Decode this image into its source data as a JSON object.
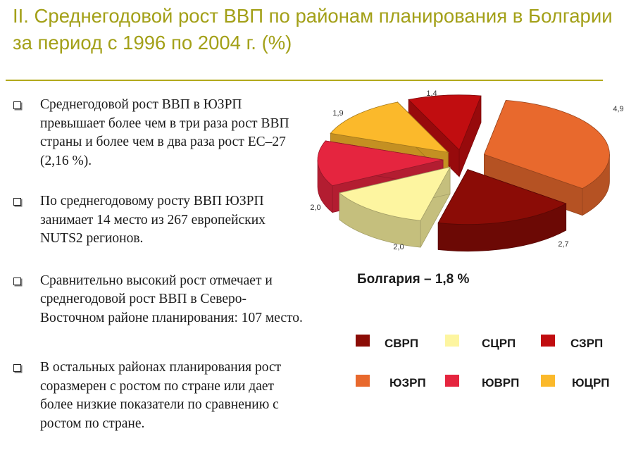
{
  "page": {
    "title": "II. Среднегодовой рост ВВП по районам планирования в Болгарии за период с 1996 по 2004 г. (%)"
  },
  "bullets": [
    "Среднегодовой рост ВВП в ЮЗРП превышает более чем в три раза рост ВВП страны и более чем в два раза рост ЕС–27 (2,16 %).",
    "По среднегодовому росту ВВП ЮЗРП занимает 14 место из 267 европейских NUTS2 регионов.",
    "Сравнительно высокий рост отмечает и среднегодовой рост ВВП в Северо-Восточном районе планирования: 107 место.",
    "В остальных районах планирования рост соразмерен с ростом по стране или дает более низкие показатели по сравнению с ростом по стране."
  ],
  "chart_data": {
    "type": "pie",
    "subtitle": "Болгария – 1,8 %",
    "slices": [
      {
        "name": "ЮЗРП",
        "value": 4.9,
        "label": "4,9",
        "color": "#e8692d"
      },
      {
        "name": "СВРП",
        "value": 2.7,
        "label": "2,7",
        "color": "#8b0c06"
      },
      {
        "name": "СЦРП",
        "value": 2.0,
        "label": "2,0",
        "color": "#fdf5a0"
      },
      {
        "name": "ЮВРП",
        "value": 2.0,
        "label": "2,0",
        "color": "#e5253f"
      },
      {
        "name": "ЮЦРП",
        "value": 1.9,
        "label": "1,9",
        "color": "#fbb92b"
      },
      {
        "name": "СЗРП",
        "value": 1.4,
        "label": "1,4",
        "color": "#c10d10"
      }
    ],
    "legend_order": [
      "СВРП",
      "СЦРП",
      "СЗРП",
      "ЮЗРП",
      "ЮВРП",
      "ЮЦРП"
    ],
    "legend_placement": "bottom",
    "exploded": true,
    "three_d": true
  }
}
